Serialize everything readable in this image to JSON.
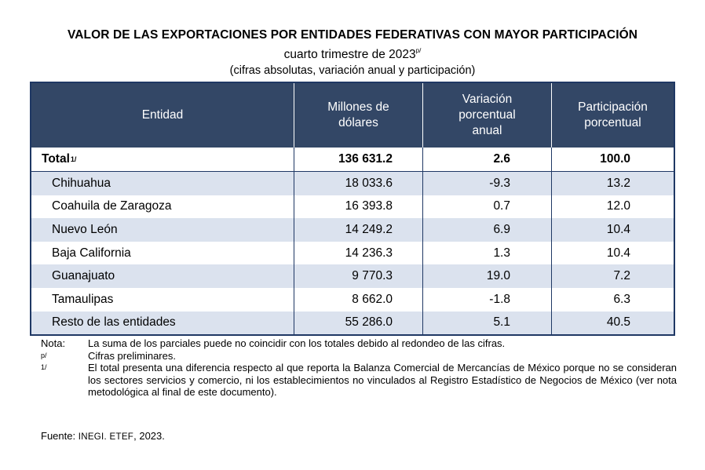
{
  "header": {
    "title": "VALOR DE LAS EXPORTACIONES POR ENTIDADES FEDERATIVAS CON MAYOR PARTICIPACIÓN",
    "subtitle": "cuarto trimestre de 2023",
    "subtitle_mark": "p/",
    "subsubtitle": "(cifras absolutas, variación anual y participación)"
  },
  "table": {
    "columns": [
      "Entidad",
      "Millones de dólares",
      "Variación porcentual anual",
      "Participación porcentual"
    ],
    "total": {
      "label": "Total",
      "mark": "1/",
      "millones": "136 631.2",
      "variacion": "2.6",
      "participacion": "100.0"
    },
    "rows": [
      {
        "entidad": "Chihuahua",
        "millones": "18 033.6",
        "variacion": "-9.3",
        "participacion": "13.2"
      },
      {
        "entidad": "Coahuila de Zaragoza",
        "millones": "16 393.8",
        "variacion": "0.7",
        "participacion": "12.0"
      },
      {
        "entidad": "Nuevo León",
        "millones": "14 249.2",
        "variacion": "6.9",
        "participacion": "10.4"
      },
      {
        "entidad": "Baja California",
        "millones": "14 236.3",
        "variacion": "1.3",
        "participacion": "10.4"
      },
      {
        "entidad": "Guanajuato",
        "millones": "9 770.3",
        "variacion": "19.0",
        "participacion": "7.2"
      },
      {
        "entidad": "Tamaulipas",
        "millones": "8 662.0",
        "variacion": "-1.8",
        "participacion": "6.3"
      },
      {
        "entidad": "Resto de las entidades",
        "millones": "55 286.0",
        "variacion": "5.1",
        "participacion": "40.5"
      }
    ]
  },
  "notes": [
    {
      "key": "Nota:",
      "text": "La suma de los parciales puede no coincidir con los totales debido al redondeo de las cifras."
    },
    {
      "key": "p/",
      "text": "Cifras preliminares."
    },
    {
      "key": "1/",
      "text": "El total presenta una diferencia respecto al que reporta la Balanza Comercial de Mercancías de México porque no se consideran los sectores servicios y comercio, ni los establecimientos no vinculados al Registro Estadístico de Negocios de México (ver nota metodológica al final de este documento)."
    }
  ],
  "source": {
    "label": "Fuente:",
    "org": "INEGI. ETEF",
    "year": ", 2023."
  }
}
